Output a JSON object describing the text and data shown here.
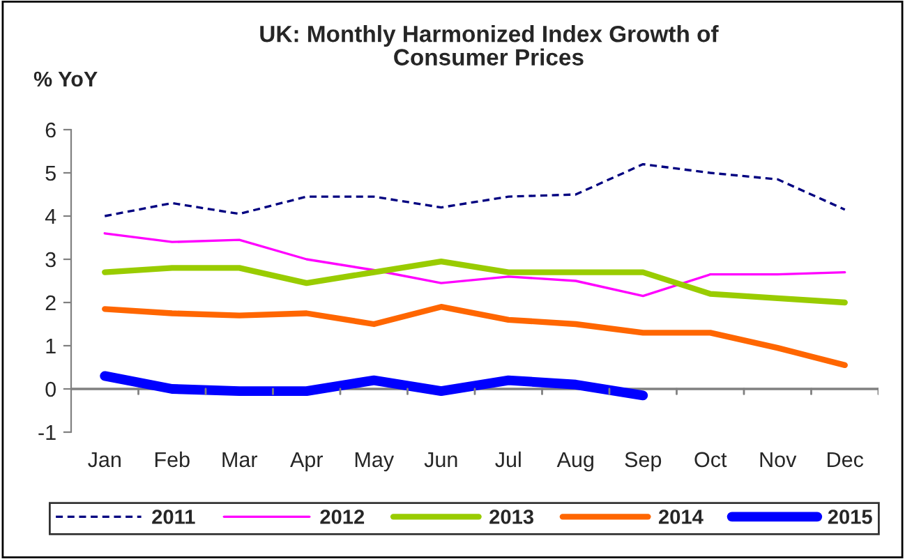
{
  "chart_data": {
    "type": "line",
    "title": "UK: Monthly Harmonized Index Growth of\nConsumer Prices",
    "ylabel": "% YoY",
    "categories": [
      "Jan",
      "Feb",
      "Mar",
      "Apr",
      "May",
      "Jun",
      "Jul",
      "Aug",
      "Sep",
      "Oct",
      "Nov",
      "Dec"
    ],
    "series": [
      {
        "name": "2011",
        "color": "#000080",
        "line_style": "dashed",
        "values": [
          4.0,
          4.3,
          4.05,
          4.45,
          4.45,
          4.2,
          4.45,
          4.5,
          5.2,
          5.0,
          4.85,
          4.15
        ]
      },
      {
        "name": "2012",
        "color": "#ff00ff",
        "line_style": "solid",
        "values": [
          3.6,
          3.4,
          3.45,
          3.0,
          2.75,
          2.45,
          2.6,
          2.5,
          2.15,
          2.65,
          2.65,
          2.7
        ]
      },
      {
        "name": "2013",
        "color": "#99cc00",
        "line_style": "solid",
        "values": [
          2.7,
          2.8,
          2.8,
          2.45,
          2.7,
          2.95,
          2.7,
          2.7,
          2.7,
          2.2,
          2.1,
          2.0
        ]
      },
      {
        "name": "2014",
        "color": "#ff6600",
        "line_style": "solid",
        "values": [
          1.85,
          1.75,
          1.7,
          1.75,
          1.5,
          1.9,
          1.6,
          1.5,
          1.3,
          1.3,
          0.95,
          0.55
        ]
      },
      {
        "name": "2015",
        "color": "#0000ff",
        "line_style": "solid",
        "values": [
          0.3,
          0.0,
          -0.05,
          -0.05,
          0.2,
          -0.05,
          0.2,
          0.1,
          -0.15,
          null,
          null,
          null
        ]
      }
    ],
    "ylim": [
      -1,
      6
    ],
    "yticks": [
      -1,
      0,
      1,
      2,
      3,
      4,
      5,
      6
    ],
    "ref_lines": [
      {
        "axis": "y",
        "value": 0,
        "color": "#808080"
      }
    ],
    "grid": false,
    "legend": "bottom",
    "marker": "none"
  }
}
